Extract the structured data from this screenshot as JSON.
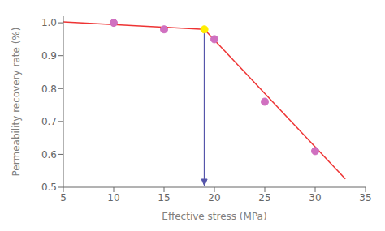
{
  "chart_data": {
    "type": "scatter",
    "x_label": "Effective stress (MPa)",
    "y_label": "Permeability recovery rate (%)",
    "xlim": [
      5,
      35
    ],
    "ylim": [
      0.5,
      1.02
    ],
    "xticks": [
      5,
      10,
      15,
      20,
      25,
      30,
      35
    ],
    "yticks": [
      0.5,
      0.6,
      0.7,
      0.8,
      0.9,
      {
        "value": 1.0,
        "label": "1.0"
      }
    ],
    "grid": false,
    "series": [
      {
        "type": "line",
        "color": "#ee3333",
        "x": [
          5,
          19
        ],
        "values": [
          1.003,
          0.98
        ]
      },
      {
        "type": "line",
        "color": "#ee3333",
        "x": [
          19,
          33
        ],
        "values": [
          0.98,
          0.525
        ]
      },
      {
        "type": "scatter",
        "marker": "circle",
        "color": "#d070c0",
        "x": [
          10,
          15,
          20,
          25,
          30
        ],
        "values": [
          1.0,
          0.98,
          0.95,
          0.76,
          0.61
        ]
      },
      {
        "type": "scatter",
        "marker": "circle",
        "color": "#ffee00",
        "x": [
          19
        ],
        "values": [
          0.98
        ]
      }
    ],
    "annotations": [
      {
        "type": "arrow",
        "x": 19,
        "y": [
          0.975,
          0.505
        ],
        "color": "#5555aa"
      }
    ]
  }
}
